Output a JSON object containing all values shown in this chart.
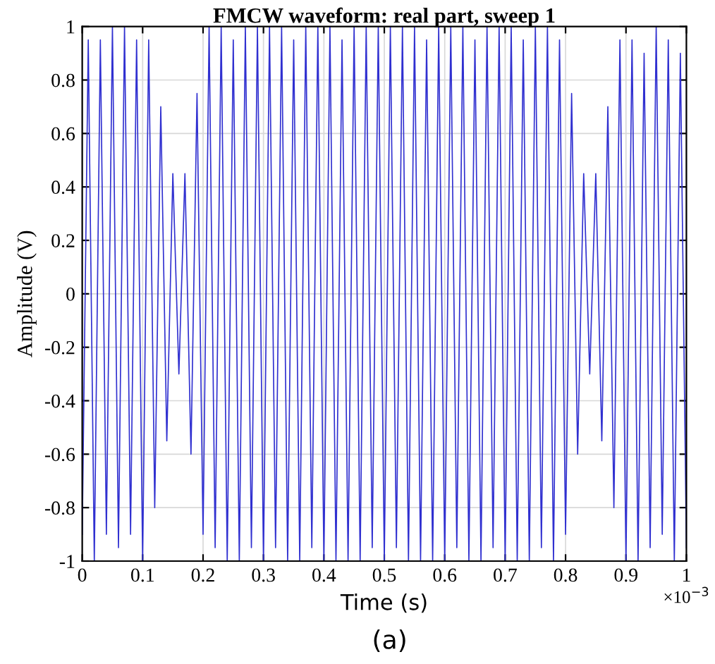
{
  "chart_data": {
    "type": "line",
    "title": "FMCW waveform: real part, sweep 1",
    "xlabel": "Time (s)",
    "ylabel": "Amplitude (V)",
    "annotations": [
      "×10$^{−3}$",
      "(a)"
    ],
    "x": [
      0,
      0.01,
      0.02,
      0.03,
      0.04,
      0.05,
      0.06,
      0.07,
      0.08,
      0.09,
      0.1,
      0.11,
      0.12,
      0.13,
      0.14,
      0.15,
      0.16,
      0.17,
      0.18,
      0.19,
      0.2,
      0.21,
      0.22,
      0.23,
      0.24,
      0.25,
      0.26,
      0.27,
      0.28,
      0.29,
      0.3,
      0.31,
      0.32,
      0.33,
      0.34,
      0.35,
      0.36,
      0.37,
      0.38,
      0.39,
      0.4,
      0.41,
      0.42,
      0.43,
      0.44,
      0.45,
      0.46,
      0.47,
      0.48,
      0.49,
      0.5,
      0.51,
      0.52,
      0.53,
      0.54,
      0.55,
      0.56,
      0.57,
      0.58,
      0.59,
      0.6,
      0.61,
      0.62,
      0.63,
      0.64,
      0.65,
      0.66,
      0.67,
      0.68,
      0.69,
      0.7,
      0.71,
      0.72,
      0.73,
      0.74,
      0.75,
      0.76,
      0.77,
      0.78,
      0.79,
      0.8,
      0.81,
      0.82,
      0.83,
      0.84,
      0.85,
      0.86,
      0.87,
      0.88,
      0.89,
      0.9,
      0.91,
      0.92,
      0.93,
      0.94,
      0.95,
      0.96,
      0.97,
      0.98,
      0.99,
      1
    ],
    "series": [
      {
        "color": "#3030d0",
        "values": [
          -0.9,
          0.95,
          -1,
          0.95,
          -0.9,
          1,
          -0.95,
          1,
          -0.9,
          0.95,
          -1,
          0.95,
          -0.8,
          0.7,
          -0.55,
          0.45,
          -0.3,
          0.45,
          -0.6,
          0.75,
          -0.9,
          1,
          -0.95,
          1,
          -1,
          0.95,
          -1,
          1,
          -0.95,
          1,
          -1,
          1,
          -0.95,
          1,
          -1,
          0.95,
          -1,
          1,
          -0.95,
          1,
          -1,
          1,
          -1,
          0.95,
          -1,
          1,
          -1,
          1,
          -0.95,
          1,
          -1,
          1,
          -0.95,
          1,
          -1,
          1,
          -1,
          0.95,
          -1,
          1,
          -1,
          1,
          -0.95,
          1,
          -1,
          0.95,
          -1,
          1,
          -0.95,
          1,
          -1,
          1,
          -1,
          0.95,
          -1,
          1,
          -0.95,
          1,
          -1,
          0.95,
          -0.9,
          0.75,
          -0.6,
          0.45,
          -0.3,
          0.45,
          -0.55,
          0.7,
          -0.8,
          0.95,
          -1,
          0.95,
          -1,
          0.9,
          -0.95,
          1,
          -0.9,
          0.95,
          -1,
          0.9,
          -0.95
        ]
      }
    ],
    "xlim": [
      0,
      1
    ],
    "ylim": [
      -1,
      1
    ],
    "xticks": [
      0,
      0.1,
      0.2,
      0.3,
      0.4,
      0.5,
      0.6,
      0.7,
      0.8,
      0.9,
      1
    ],
    "yticks": [
      -1,
      -0.8,
      -0.6,
      -0.4,
      -0.2,
      0,
      0.2,
      0.4,
      0.6,
      0.8,
      1
    ],
    "grid": true,
    "legend": false,
    "line_style": "solid",
    "marker": "none"
  }
}
